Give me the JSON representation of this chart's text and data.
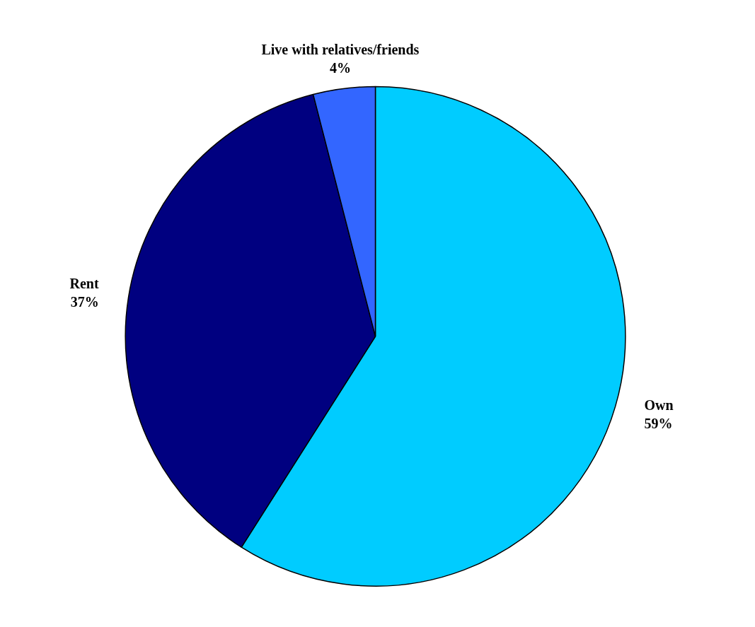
{
  "chart_data": {
    "type": "pie",
    "categories": [
      "Own",
      "Rent",
      "Live with relatives/friends"
    ],
    "values": [
      59,
      37,
      4
    ],
    "value_labels": [
      "59%",
      "37%",
      "4%"
    ],
    "colors": [
      "#00ccff",
      "#000080",
      "#3366ff"
    ]
  }
}
